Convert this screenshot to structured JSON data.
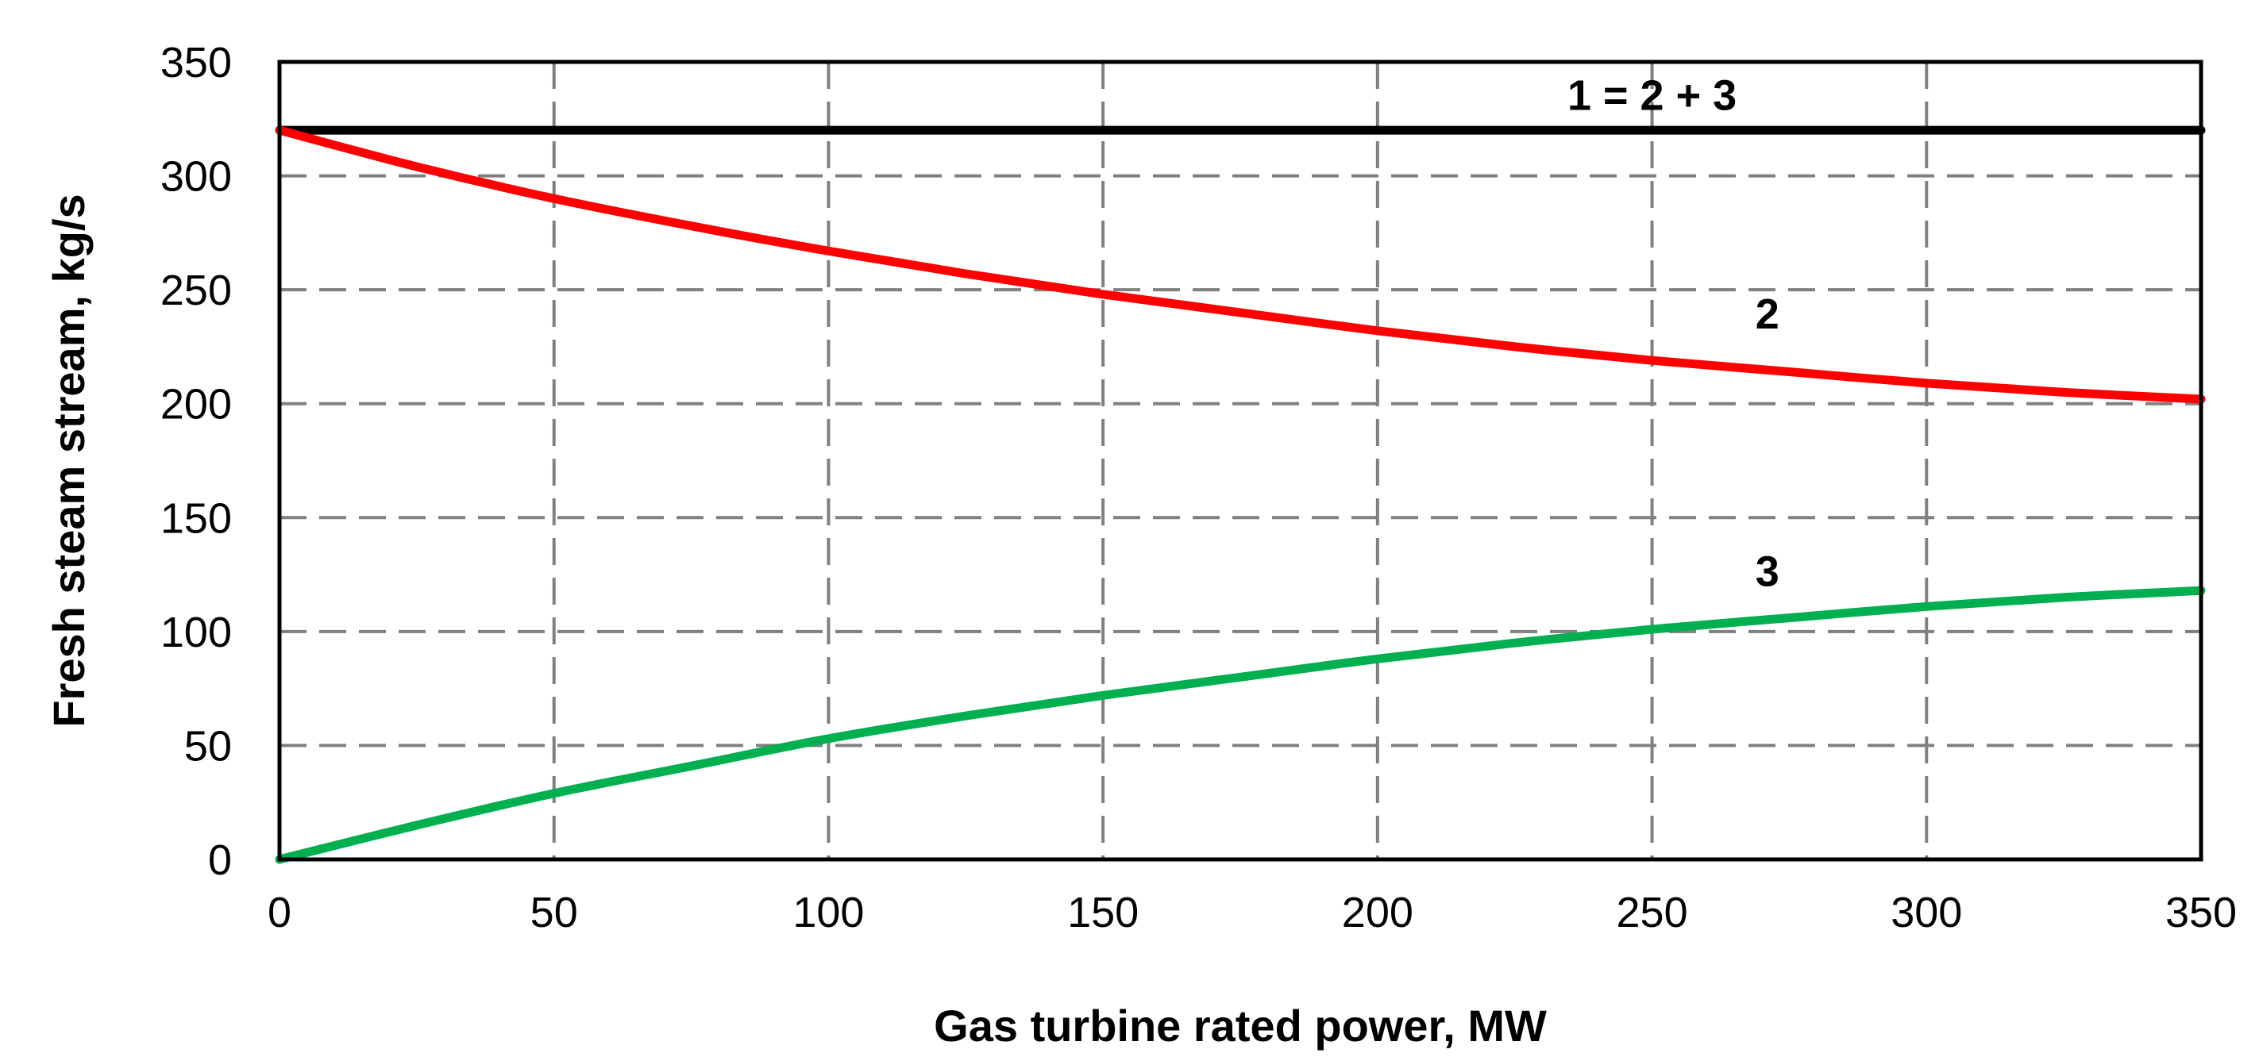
{
  "chart_data": {
    "type": "line",
    "title": "",
    "xlabel": "Gas turbine rated power, MW",
    "ylabel": "Fresh steam stream, kg/s",
    "xlim": [
      0,
      350
    ],
    "ylim": [
      0,
      350
    ],
    "xticks": [
      0,
      50,
      100,
      150,
      200,
      250,
      300,
      350
    ],
    "yticks": [
      0,
      50,
      100,
      150,
      200,
      250,
      300,
      350
    ],
    "grid": true,
    "x": [
      0,
      25,
      50,
      75,
      100,
      125,
      150,
      175,
      200,
      225,
      250,
      275,
      300,
      325,
      350
    ],
    "series": [
      {
        "name": "1 = 2 + 3",
        "label": "1 = 2 + 3",
        "label_x": 250,
        "label_y": 329,
        "color": "#000000",
        "values": [
          320,
          320,
          320,
          320,
          320,
          320,
          320,
          320,
          320,
          320,
          320,
          320,
          320,
          320,
          320
        ]
      },
      {
        "name": "2",
        "label": "2",
        "label_x": 271,
        "label_y": 233,
        "color": "#ff0000",
        "values": [
          320,
          304,
          290,
          278,
          267,
          257,
          248,
          240,
          232,
          225,
          219,
          214,
          209,
          205,
          202
        ]
      },
      {
        "name": "3",
        "label": "3",
        "label_x": 271,
        "label_y": 120,
        "color": "#00b050",
        "values": [
          0,
          15,
          29,
          41,
          53,
          63,
          72,
          80,
          88,
          95,
          101,
          106,
          111,
          115,
          118
        ]
      }
    ]
  }
}
